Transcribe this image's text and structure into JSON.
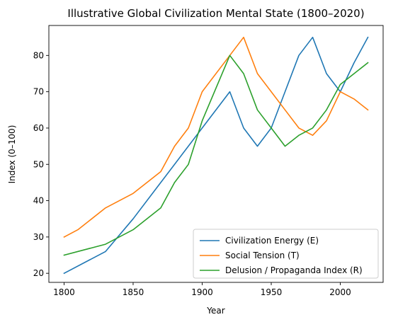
{
  "chart_data": {
    "type": "line",
    "title": "Illustrative Global Civilization Mental State (1800–2020)",
    "xlabel": "Year",
    "ylabel": "Index (0–100)",
    "xlim": [
      1789,
      2031
    ],
    "ylim": [
      17.5,
      88.25
    ],
    "xticks": [
      1800,
      1850,
      1900,
      1950,
      2000
    ],
    "yticks": [
      20,
      30,
      40,
      50,
      60,
      70,
      80
    ],
    "grid": false,
    "legend_position": "lower-right",
    "series": [
      {
        "name": "Civilization Energy (E)",
        "color": "#1f77b4",
        "x": [
          1800,
          1830,
          1850,
          1870,
          1900,
          1920,
          1930,
          1940,
          1950,
          1960,
          1970,
          1980,
          1990,
          2000,
          2010,
          2020
        ],
        "values": [
          20,
          26,
          35,
          45,
          60,
          70,
          60,
          55,
          60,
          70,
          80,
          85,
          75,
          70,
          78,
          85
        ]
      },
      {
        "name": "Social Tension (T)",
        "color": "#ff7f0e",
        "x": [
          1800,
          1810,
          1830,
          1850,
          1870,
          1880,
          1890,
          1900,
          1920,
          1930,
          1940,
          1950,
          1960,
          1970,
          1980,
          1990,
          2000,
          2010,
          2020
        ],
        "values": [
          30,
          32,
          38,
          42,
          48,
          55,
          60,
          70,
          80,
          85,
          75,
          70,
          65,
          60,
          58,
          62,
          70,
          68,
          65
        ]
      },
      {
        "name": "Delusion / Propaganda Index (R)",
        "color": "#2ca02c",
        "x": [
          1800,
          1830,
          1850,
          1870,
          1880,
          1890,
          1900,
          1920,
          1930,
          1940,
          1950,
          1960,
          1970,
          1980,
          1990,
          2000,
          2010,
          2020
        ],
        "values": [
          25,
          28,
          32,
          38,
          45,
          50,
          62,
          80,
          75,
          65,
          60,
          55,
          58,
          60,
          65,
          72,
          75,
          78
        ]
      }
    ]
  }
}
